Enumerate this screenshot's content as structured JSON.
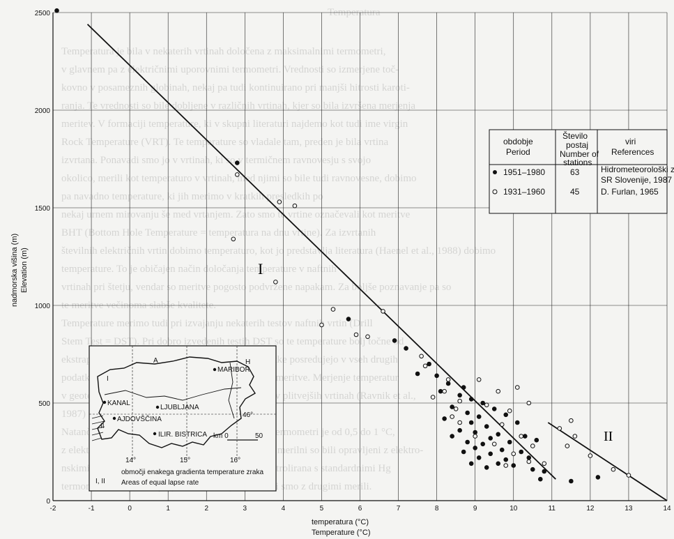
{
  "page_title": "Temperatura",
  "background_text": [
    "Temperatura je bila v nekaterih vrtinah določena z maksimalnimi termometri,",
    "v glavnem pa z električnimi uporovnimi termometri. Vrednosti so izmerjene toč-",
    "kovno v posameznih globinah, nekaj pa tudi kontinuirano pri manjši hitrosti karoti-",
    "ranja. Te vrednosti so bile dobljene v različnih vrtinah, kjer so bila izvršena merjenja",
    "meritev. V formaciji temperature, ki v skupni literaturi najdemo kot tudi ime virgin",
    "Rock Temperature (VRT). Te temperature so vladale tam, preden je bila vrtina",
    "izvrtana. Ponavadi smo jo v vrtinah, ki so v termičnem ravnovesju s svojo",
    "okolico, merili kot temperaturo v vrtinah, med njimi so bile tudi ravnovesne, dobimo",
    "pa navadno temperature, ki jih merimo v kratkih presledkih po",
    "nekaj urnem mirovanju še med vrtanjem. Zato smo te vrtine označevali kot meritve",
    "BHT (Bottom Hole Temperature = temperatura na dnu vrtine). Za izvrtanih",
    "številnih električnih vrtin dobimo temperaturo, kot jo predstavlja literatura (Haenel et al., 1988) dobimo",
    "temperature. To je običajen način določanja temperature v naftnih",
    "vrtinah pri štetju, vendar so meritve pogosto podvržene napakam. Za boljše poznavanje pa so",
    "te meritve večinoma slabše kvalitete.",
    "Temperature merimo tudi pri izvajanju nekaterih testov naftnih vrtin (Drill",
    "Stem Test = DST). Pri dobro izvedenih testih DST so te temperature bolj točne od",
    "ekstrapoliranih vrednosti BHT. Temperaturne podatke posredujejo v vseh drugih",
    "podatkih hidrogeoloških vrtin, kjer se izvajajo tudi meritve. Merjenje temperatur",
    "v geotermalnih vrtinah je bilo večinoma enako kot v plitvejših vrtinah (Ravnik et al.,",
    "1987) podatke pa so zbirali podatkov ne navajamo.",
    "Natančnost merjenja temperature z maksimalnimi termometri je od 0,5 do 1 °C,",
    "z električnimi pa od 0,1 do 0,4 °C. Vsi naši novejši merilni so bili opravljeni z elektro-",
    "nskimi termometri. Točnost temperature je bila kontrolirana s standardnimi Hg",
    "termometri v laboratoriju (Ravnik, 1991). Vrednosti smo z drugimi merili."
  ],
  "chart_data": {
    "type": "scatter",
    "xlabel": "temperatura (°C)",
    "xlabel_en": "Temperature (°C)",
    "ylabel": "nadmorska višina (m)",
    "ylabel_en": "Elevation (m)",
    "xlim": [
      -2,
      14
    ],
    "ylim": [
      0,
      2500
    ],
    "xticks": [
      -2,
      -1,
      0,
      1,
      2,
      3,
      4,
      5,
      6,
      7,
      8,
      9,
      10,
      11,
      12,
      13,
      14
    ],
    "yticks": [
      0,
      500,
      1000,
      1500,
      2000,
      2500
    ],
    "series": [
      {
        "name": "1951–1980",
        "marker": "filled",
        "points": [
          [
            -1.9,
            2510
          ],
          [
            2.8,
            1730
          ],
          [
            5.7,
            930
          ],
          [
            6.9,
            820
          ],
          [
            7.2,
            780
          ],
          [
            7.8,
            700
          ],
          [
            7.5,
            650
          ],
          [
            8.0,
            640
          ],
          [
            8.3,
            600
          ],
          [
            8.7,
            580
          ],
          [
            8.1,
            560
          ],
          [
            8.6,
            540
          ],
          [
            8.9,
            520
          ],
          [
            9.2,
            500
          ],
          [
            8.4,
            480
          ],
          [
            9.5,
            470
          ],
          [
            8.8,
            450
          ],
          [
            9.1,
            430
          ],
          [
            9.8,
            440
          ],
          [
            8.2,
            420
          ],
          [
            8.9,
            400
          ],
          [
            9.3,
            380
          ],
          [
            10.1,
            400
          ],
          [
            8.6,
            360
          ],
          [
            9.0,
            350
          ],
          [
            9.6,
            340
          ],
          [
            8.4,
            330
          ],
          [
            9.4,
            320
          ],
          [
            10.3,
            330
          ],
          [
            8.8,
            300
          ],
          [
            9.2,
            290
          ],
          [
            9.9,
            300
          ],
          [
            10.6,
            310
          ],
          [
            9.0,
            270
          ],
          [
            9.7,
            260
          ],
          [
            8.7,
            250
          ],
          [
            10.2,
            250
          ],
          [
            9.4,
            240
          ],
          [
            9.1,
            220
          ],
          [
            9.8,
            210
          ],
          [
            10.4,
            220
          ],
          [
            9.6,
            190
          ],
          [
            10.0,
            180
          ],
          [
            8.9,
            190
          ],
          [
            10.5,
            160
          ],
          [
            9.3,
            170
          ],
          [
            10.8,
            150
          ],
          [
            12.2,
            120
          ],
          [
            10.7,
            110
          ],
          [
            11.5,
            100
          ]
        ]
      },
      {
        "name": "1931–1960",
        "marker": "open",
        "points": [
          [
            2.8,
            1670
          ],
          [
            3.9,
            1530
          ],
          [
            4.3,
            1510
          ],
          [
            2.7,
            1340
          ],
          [
            3.8,
            1120
          ],
          [
            5.3,
            980
          ],
          [
            6.6,
            970
          ],
          [
            5.0,
            900
          ],
          [
            5.9,
            850
          ],
          [
            6.2,
            840
          ],
          [
            7.6,
            740
          ],
          [
            7.7,
            690
          ],
          [
            8.3,
            620
          ],
          [
            9.1,
            620
          ],
          [
            10.1,
            580
          ],
          [
            8.2,
            560
          ],
          [
            9.6,
            560
          ],
          [
            7.9,
            530
          ],
          [
            8.6,
            510
          ],
          [
            9.3,
            490
          ],
          [
            10.4,
            500
          ],
          [
            8.5,
            470
          ],
          [
            8.4,
            430
          ],
          [
            9.9,
            460
          ],
          [
            11.5,
            410
          ],
          [
            8.6,
            400
          ],
          [
            9.7,
            390
          ],
          [
            11.2,
            370
          ],
          [
            9.0,
            330
          ],
          [
            10.2,
            330
          ],
          [
            11.6,
            330
          ],
          [
            9.5,
            290
          ],
          [
            10.5,
            280
          ],
          [
            11.4,
            280
          ],
          [
            10.0,
            240
          ],
          [
            12.0,
            230
          ],
          [
            10.4,
            200
          ],
          [
            12.6,
            160
          ],
          [
            10.8,
            190
          ],
          [
            13.0,
            130
          ],
          [
            9.8,
            180
          ]
        ]
      }
    ],
    "regression_lines": [
      {
        "label": "I",
        "from": [
          -1.1,
          2440
        ],
        "to": [
          11.1,
          110
        ]
      },
      {
        "label": "II",
        "from": [
          10.9,
          400
        ],
        "to": [
          14.0,
          0
        ]
      }
    ],
    "table": {
      "headers": [
        "obdobje\nPeriod",
        "Število\npostaj\nNumber of\nstations",
        "viri\nReferences"
      ],
      "rows": [
        {
          "period": "1951–1980",
          "stations": "63",
          "references": [
            "Hidrometeorološki zavod",
            "SR Slovenije, 1987"
          ]
        },
        {
          "period": "1931–1960",
          "stations": "45",
          "references": [
            "D. Furlan, 1965"
          ]
        }
      ]
    },
    "inset_map": {
      "title": "območji enakega gradienta temperature zraka",
      "title_en": "Areas of equal lapse rate",
      "areas_label": "I, II",
      "places": [
        "MARIBOR",
        "KANAL",
        "LJUBLJANA",
        "AJDOVŠČINA",
        "ILIR. BISTRICA"
      ],
      "regions": [
        "A",
        "H",
        "I",
        "II"
      ],
      "degree_labels": [
        "46°",
        "14°",
        "15°",
        "16°"
      ],
      "scale_labels": [
        "km 0",
        "50"
      ]
    }
  }
}
